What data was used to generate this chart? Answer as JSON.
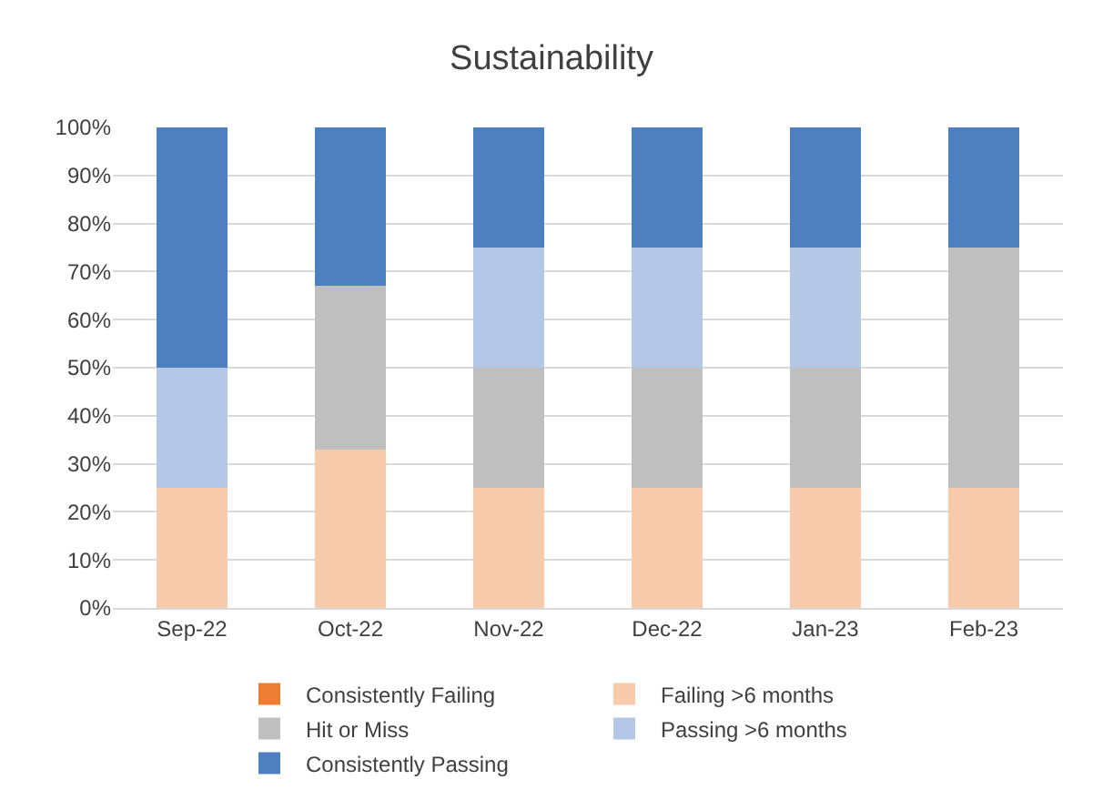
{
  "chart_data": {
    "type": "bar",
    "title": "Sustainability",
    "stacked": true,
    "categories": [
      "Sep-22",
      "Oct-22",
      "Nov-22",
      "Dec-22",
      "Jan-23",
      "Feb-23"
    ],
    "series": [
      {
        "name": "Consistently Failing",
        "color": "#ed7d31",
        "values": [
          0,
          0,
          0,
          0,
          0,
          0
        ]
      },
      {
        "name": "Failing >6 months",
        "color": "#f8cbad",
        "values": [
          25,
          33,
          25,
          25,
          25,
          25
        ]
      },
      {
        "name": "Hit or Miss",
        "color": "#bfbfbf",
        "values": [
          0,
          34,
          25,
          25,
          25,
          50
        ]
      },
      {
        "name": "Passing >6 months",
        "color": "#b4c7e7",
        "values": [
          25,
          0,
          25,
          25,
          25,
          0
        ]
      },
      {
        "name": "Consistently Passing",
        "color": "#4e80bf",
        "values": [
          50,
          33,
          25,
          25,
          25,
          25
        ]
      }
    ],
    "ylim": [
      0,
      100
    ],
    "yticks": [
      {
        "value": 0,
        "label": "0%"
      },
      {
        "value": 10,
        "label": "10%"
      },
      {
        "value": 20,
        "label": "20%"
      },
      {
        "value": 30,
        "label": "30%"
      },
      {
        "value": 40,
        "label": "40%"
      },
      {
        "value": 50,
        "label": "50%"
      },
      {
        "value": 60,
        "label": "60%"
      },
      {
        "value": 70,
        "label": "70%"
      },
      {
        "value": 80,
        "label": "80%"
      },
      {
        "value": 90,
        "label": "90%"
      },
      {
        "value": 100,
        "label": "100%"
      }
    ],
    "grid": "y",
    "legend": "bottom"
  }
}
